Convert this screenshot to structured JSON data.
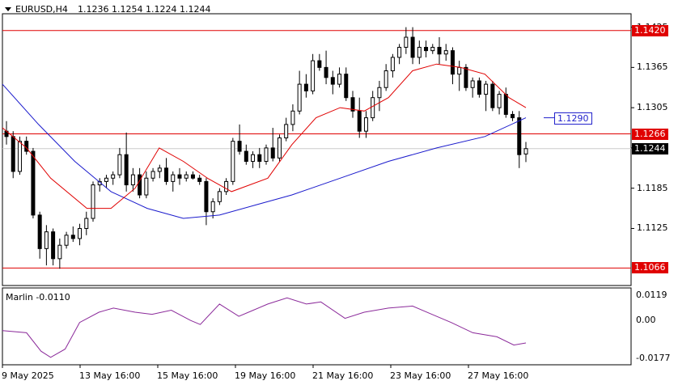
{
  "header": {
    "symbol": "EURUSD,H4",
    "ohlc": "1.1236 1.1254 1.1224 1.1244"
  },
  "price_axis": {
    "ticks": [
      "1.1425",
      "1.1365",
      "1.1305",
      "1.1245",
      "1.1185",
      "1.1125"
    ]
  },
  "levels": [
    {
      "name": "resistance-top",
      "value": 1.142,
      "label": "1.1420",
      "color": "#e00000"
    },
    {
      "name": "resistance-mid",
      "value": 1.1266,
      "label": "1.1266",
      "color": "#e00000"
    },
    {
      "name": "support-bottom",
      "value": 1.1066,
      "label": "1.1066",
      "color": "#e00000"
    }
  ],
  "current_price": {
    "label": "1.1244",
    "value": 1.1244
  },
  "ma_callout": {
    "label": "1.1290",
    "value": 1.129,
    "color": "#2222cc"
  },
  "colors": {
    "fast_ma": "#e00000",
    "slow_ma": "#1a1acc",
    "oscillator": "#8b2a9a",
    "candle": "#000000"
  },
  "indicator": {
    "name": "Marlin -0.0110",
    "ticks": [
      "0.0119",
      "0.00",
      "-0.0177"
    ]
  },
  "time_axis": {
    "labels": [
      "9 May 2025",
      "13 May 16:00",
      "15 May 16:00",
      "19 May 16:00",
      "21 May 16:00",
      "23 May 16:00",
      "27 May 16:00"
    ]
  },
  "chart_data": {
    "type": "candlestick",
    "price_range": [
      1.104,
      1.1445
    ],
    "candles": [
      [
        1.127,
        1.1285,
        1.125,
        1.1262
      ],
      [
        1.1262,
        1.127,
        1.12,
        1.121
      ],
      [
        1.121,
        1.1262,
        1.1205,
        1.1255
      ],
      [
        1.1255,
        1.1262,
        1.1235,
        1.124
      ],
      [
        1.124,
        1.1245,
        1.114,
        1.1145
      ],
      [
        1.1145,
        1.115,
        1.108,
        1.1095
      ],
      [
        1.1095,
        1.113,
        1.107,
        1.112
      ],
      [
        1.112,
        1.1125,
        1.107,
        1.108
      ],
      [
        1.108,
        1.111,
        1.1065,
        1.11
      ],
      [
        1.11,
        1.112,
        1.1095,
        1.1115
      ],
      [
        1.1115,
        1.1128,
        1.1105,
        1.111
      ],
      [
        1.111,
        1.1132,
        1.11,
        1.1125
      ],
      [
        1.1125,
        1.115,
        1.1115,
        1.114
      ],
      [
        1.114,
        1.1195,
        1.1135,
        1.119
      ],
      [
        1.119,
        1.12,
        1.118,
        1.1195
      ],
      [
        1.1195,
        1.1205,
        1.1185,
        1.12
      ],
      [
        1.12,
        1.121,
        1.119,
        1.1205
      ],
      [
        1.1205,
        1.1245,
        1.12,
        1.1235
      ],
      [
        1.1235,
        1.1268,
        1.118,
        1.119
      ],
      [
        1.119,
        1.1215,
        1.118,
        1.1205
      ],
      [
        1.1205,
        1.1215,
        1.117,
        1.1175
      ],
      [
        1.1175,
        1.121,
        1.117,
        1.12
      ],
      [
        1.12,
        1.1215,
        1.1195,
        1.121
      ],
      [
        1.121,
        1.122,
        1.12,
        1.1215
      ],
      [
        1.1215,
        1.123,
        1.119,
        1.1195
      ],
      [
        1.1195,
        1.121,
        1.118,
        1.1205
      ],
      [
        1.1205,
        1.1215,
        1.119,
        1.12
      ],
      [
        1.12,
        1.121,
        1.1195,
        1.1205
      ],
      [
        1.1205,
        1.121,
        1.1198,
        1.12
      ],
      [
        1.12,
        1.1205,
        1.119,
        1.1195
      ],
      [
        1.1195,
        1.12,
        1.113,
        1.115
      ],
      [
        1.115,
        1.117,
        1.114,
        1.1165
      ],
      [
        1.1165,
        1.1185,
        1.116,
        1.118
      ],
      [
        1.118,
        1.12,
        1.1175,
        1.1195
      ],
      [
        1.1195,
        1.126,
        1.119,
        1.1255
      ],
      [
        1.1255,
        1.128,
        1.1235,
        1.124
      ],
      [
        1.124,
        1.125,
        1.122,
        1.1225
      ],
      [
        1.1225,
        1.124,
        1.1215,
        1.1235
      ],
      [
        1.1235,
        1.1245,
        1.1215,
        1.1225
      ],
      [
        1.1225,
        1.125,
        1.122,
        1.1245
      ],
      [
        1.1245,
        1.1275,
        1.1225,
        1.123
      ],
      [
        1.123,
        1.1265,
        1.1225,
        1.126
      ],
      [
        1.126,
        1.129,
        1.1255,
        1.128
      ],
      [
        1.128,
        1.131,
        1.127,
        1.13
      ],
      [
        1.13,
        1.136,
        1.1295,
        1.134
      ],
      [
        1.134,
        1.1355,
        1.132,
        1.133
      ],
      [
        1.133,
        1.1385,
        1.1325,
        1.1375
      ],
      [
        1.1375,
        1.1385,
        1.136,
        1.1365
      ],
      [
        1.1365,
        1.139,
        1.134,
        1.135
      ],
      [
        1.135,
        1.136,
        1.1325,
        1.134
      ],
      [
        1.134,
        1.1365,
        1.1335,
        1.1355
      ],
      [
        1.1355,
        1.1365,
        1.1315,
        1.132
      ],
      [
        1.132,
        1.133,
        1.129,
        1.13
      ],
      [
        1.13,
        1.132,
        1.126,
        1.127
      ],
      [
        1.127,
        1.13,
        1.126,
        1.129
      ],
      [
        1.129,
        1.133,
        1.1285,
        1.132
      ],
      [
        1.132,
        1.1345,
        1.13,
        1.1335
      ],
      [
        1.1335,
        1.137,
        1.133,
        1.136
      ],
      [
        1.136,
        1.1385,
        1.135,
        1.138
      ],
      [
        1.138,
        1.14,
        1.137,
        1.1395
      ],
      [
        1.1395,
        1.1425,
        1.1385,
        1.141
      ],
      [
        1.141,
        1.1425,
        1.137,
        1.138
      ],
      [
        1.138,
        1.1405,
        1.137,
        1.1395
      ],
      [
        1.1395,
        1.1405,
        1.138,
        1.139
      ],
      [
        1.139,
        1.14,
        1.1385,
        1.1395
      ],
      [
        1.1395,
        1.141,
        1.137,
        1.1385
      ],
      [
        1.1385,
        1.14,
        1.1375,
        1.139
      ],
      [
        1.139,
        1.1395,
        1.134,
        1.1355
      ],
      [
        1.1355,
        1.1375,
        1.133,
        1.1365
      ],
      [
        1.1365,
        1.137,
        1.133,
        1.1335
      ],
      [
        1.1335,
        1.135,
        1.132,
        1.1345
      ],
      [
        1.1345,
        1.135,
        1.132,
        1.1325
      ],
      [
        1.1325,
        1.1345,
        1.13,
        1.134
      ],
      [
        1.134,
        1.1345,
        1.13,
        1.1305
      ],
      [
        1.1305,
        1.133,
        1.1295,
        1.1325
      ],
      [
        1.1325,
        1.1335,
        1.129,
        1.1295
      ],
      [
        1.1295,
        1.13,
        1.1285,
        1.129
      ],
      [
        1.129,
        1.13,
        1.1215,
        1.1235
      ],
      [
        1.1236,
        1.1254,
        1.1224,
        1.1244
      ]
    ],
    "slow_ma": [
      [
        0,
        1.134
      ],
      [
        15,
        1.128
      ],
      [
        30,
        1.1225
      ],
      [
        45,
        1.118
      ],
      [
        60,
        1.1155
      ],
      [
        75,
        1.114
      ],
      [
        90,
        1.1145
      ],
      [
        105,
        1.116
      ],
      [
        120,
        1.1175
      ],
      [
        140,
        1.12
      ],
      [
        160,
        1.1225
      ],
      [
        180,
        1.1245
      ],
      [
        200,
        1.1262
      ],
      [
        217,
        1.129
      ]
    ],
    "fast_ma": [
      [
        0,
        1.1275
      ],
      [
        10,
        1.1245
      ],
      [
        20,
        1.12
      ],
      [
        35,
        1.1155
      ],
      [
        45,
        1.1155
      ],
      [
        55,
        1.1185
      ],
      [
        65,
        1.1245
      ],
      [
        75,
        1.1225
      ],
      [
        85,
        1.12
      ],
      [
        95,
        1.118
      ],
      [
        110,
        1.12
      ],
      [
        120,
        1.125
      ],
      [
        130,
        1.129
      ],
      [
        140,
        1.1305
      ],
      [
        150,
        1.13
      ],
      [
        160,
        1.132
      ],
      [
        170,
        1.136
      ],
      [
        180,
        1.137
      ],
      [
        190,
        1.1365
      ],
      [
        200,
        1.1355
      ],
      [
        210,
        1.132
      ],
      [
        217,
        1.1305
      ]
    ],
    "oscillator": [
      [
        0,
        -0.005
      ],
      [
        10,
        -0.006
      ],
      [
        16,
        -0.015
      ],
      [
        20,
        -0.018
      ],
      [
        26,
        -0.014
      ],
      [
        32,
        -0.001
      ],
      [
        40,
        0.004
      ],
      [
        46,
        0.006
      ],
      [
        55,
        0.004
      ],
      [
        62,
        0.003
      ],
      [
        70,
        0.005
      ],
      [
        78,
        0.0
      ],
      [
        82,
        -0.002
      ],
      [
        90,
        0.008
      ],
      [
        98,
        0.002
      ],
      [
        104,
        0.005
      ],
      [
        110,
        0.008
      ],
      [
        118,
        0.011
      ],
      [
        126,
        0.008
      ],
      [
        132,
        0.009
      ],
      [
        142,
        0.001
      ],
      [
        150,
        0.004
      ],
      [
        160,
        0.006
      ],
      [
        170,
        0.007
      ],
      [
        178,
        0.003
      ],
      [
        186,
        -0.001
      ],
      [
        195,
        -0.006
      ],
      [
        205,
        -0.008
      ],
      [
        212,
        -0.012
      ],
      [
        217,
        -0.011
      ]
    ]
  }
}
